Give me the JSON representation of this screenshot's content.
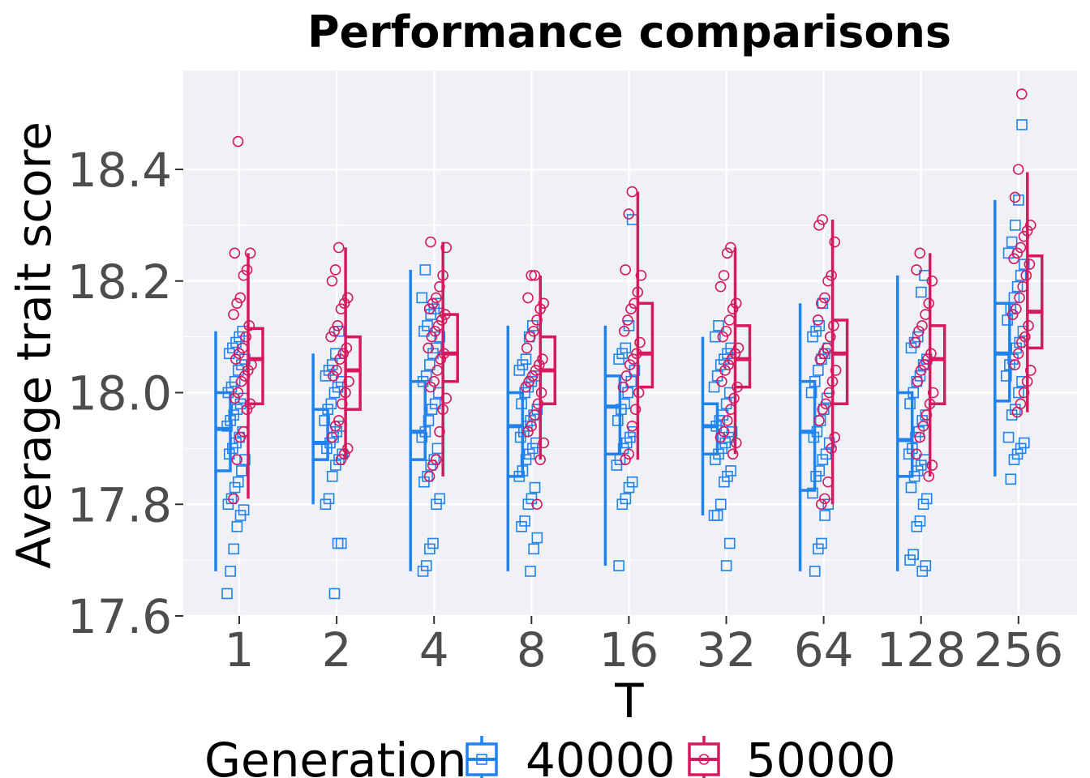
{
  "chart_data": {
    "type": "boxplot",
    "title": "Performance comparisons",
    "xlabel": "T",
    "ylabel": "Average trait score",
    "categories": [
      "1",
      "2",
      "4",
      "8",
      "16",
      "32",
      "64",
      "128",
      "256"
    ],
    "ylim": [
      17.6,
      18.57
    ],
    "yticks": [
      17.6,
      17.8,
      18.0,
      18.2,
      18.4
    ],
    "ytick_labels": [
      "17.6",
      "17.8",
      "18.0",
      "18.2",
      "18.4"
    ],
    "grid": true,
    "legend": {
      "title": "Generation",
      "position": "bottom",
      "entries": [
        "40000",
        "50000"
      ]
    },
    "series": [
      {
        "name": "40000",
        "color": "#1e82f0",
        "marker": "square",
        "boxes": [
          {
            "whislo": 17.68,
            "q1": 17.86,
            "med": 17.935,
            "q3": 18.0,
            "whishi": 18.11,
            "points": [
              17.64,
              17.68,
              17.72,
              17.76,
              17.78,
              17.79,
              17.8,
              17.81,
              17.83,
              17.84,
              17.86,
              17.88,
              17.89,
              17.9,
              17.91,
              17.92,
              17.93,
              17.94,
              17.95,
              17.96,
              17.97,
              17.98,
              17.99,
              18.0,
              18.01,
              18.02,
              18.04,
              18.05,
              18.06,
              18.07,
              18.08,
              18.09,
              18.1,
              18.11
            ]
          },
          {
            "whislo": 17.8,
            "q1": 17.88,
            "med": 17.91,
            "q3": 17.97,
            "whishi": 18.07,
            "points": [
              17.64,
              17.73,
              17.73,
              17.8,
              17.81,
              17.85,
              17.87,
              17.88,
              17.89,
              17.9,
              17.91,
              17.92,
              17.93,
              17.94,
              17.95,
              17.97,
              17.98,
              18.0,
              18.01,
              18.02,
              18.03,
              18.04,
              18.05,
              18.07,
              18.11
            ]
          },
          {
            "whislo": 17.68,
            "q1": 17.88,
            "med": 17.93,
            "q3": 18.02,
            "whishi": 18.22,
            "points": [
              17.68,
              17.69,
              17.72,
              17.73,
              17.8,
              17.81,
              17.84,
              17.85,
              17.87,
              17.88,
              17.9,
              17.92,
              17.93,
              17.95,
              17.97,
              17.98,
              18.0,
              18.02,
              18.03,
              18.05,
              18.07,
              18.08,
              18.1,
              18.11,
              18.12,
              18.14,
              18.15,
              18.16,
              18.17,
              18.22
            ]
          },
          {
            "whislo": 17.68,
            "q1": 17.85,
            "med": 17.94,
            "q3": 18.0,
            "whishi": 18.12,
            "points": [
              17.68,
              17.72,
              17.74,
              17.76,
              17.77,
              17.8,
              17.81,
              17.83,
              17.85,
              17.86,
              17.88,
              17.89,
              17.9,
              17.91,
              17.92,
              17.93,
              17.94,
              17.95,
              17.96,
              17.97,
              17.98,
              18.0,
              18.01,
              18.02,
              18.03,
              18.04,
              18.05,
              18.06,
              18.1,
              18.12
            ]
          },
          {
            "whislo": 17.69,
            "q1": 17.89,
            "med": 17.975,
            "q3": 18.03,
            "whishi": 18.12,
            "points": [
              17.69,
              17.8,
              17.81,
              17.83,
              17.84,
              17.87,
              17.88,
              17.9,
              17.91,
              17.92,
              17.93,
              17.95,
              17.97,
              17.98,
              18.0,
              18.02,
              18.04,
              18.06,
              18.07,
              18.08,
              18.12,
              18.31
            ]
          },
          {
            "whislo": 17.78,
            "q1": 17.89,
            "med": 17.94,
            "q3": 17.98,
            "whishi": 18.1,
            "points": [
              17.69,
              17.73,
              17.78,
              17.78,
              17.8,
              17.84,
              17.85,
              17.86,
              17.88,
              17.89,
              17.9,
              17.91,
              17.92,
              17.93,
              17.94,
              17.95,
              17.96,
              17.98,
              18.0,
              18.01,
              18.03,
              18.05,
              18.06,
              18.07,
              18.08,
              18.1,
              18.12
            ]
          },
          {
            "whislo": 17.68,
            "q1": 17.825,
            "med": 17.93,
            "q3": 18.02,
            "whishi": 18.16,
            "points": [
              17.68,
              17.72,
              17.73,
              17.78,
              17.8,
              17.82,
              17.85,
              17.86,
              17.88,
              17.89,
              17.91,
              17.92,
              17.93,
              17.95,
              17.97,
              17.99,
              18.0,
              18.02,
              18.04,
              18.06,
              18.07,
              18.08,
              18.1,
              18.11,
              18.12,
              18.16
            ]
          },
          {
            "whislo": 17.68,
            "q1": 17.85,
            "med": 17.915,
            "q3": 18.0,
            "whishi": 18.21,
            "points": [
              17.68,
              17.69,
              17.7,
              17.71,
              17.76,
              17.77,
              17.8,
              17.81,
              17.83,
              17.85,
              17.86,
              17.87,
              17.88,
              17.89,
              17.9,
              17.92,
              17.93,
              17.95,
              17.96,
              17.98,
              18.0,
              18.02,
              18.03,
              18.05,
              18.06,
              18.08,
              18.09,
              18.1,
              18.18,
              18.21
            ]
          },
          {
            "whislo": 17.85,
            "q1": 17.985,
            "med": 18.07,
            "q3": 18.16,
            "whishi": 18.345,
            "points": [
              17.845,
              17.88,
              17.89,
              17.9,
              17.91,
              17.92,
              17.96,
              17.97,
              18.0,
              18.02,
              18.03,
              18.05,
              18.06,
              18.08,
              18.09,
              18.11,
              18.13,
              18.15,
              18.17,
              18.19,
              18.21,
              18.23,
              18.25,
              18.27,
              18.3,
              18.345,
              18.48
            ]
          }
        ]
      },
      {
        "name": "50000",
        "color": "#d6185e",
        "marker": "circle",
        "boxes": [
          {
            "whislo": 17.81,
            "q1": 17.98,
            "med": 18.06,
            "q3": 18.115,
            "whishi": 18.25,
            "points": [
              17.81,
              17.88,
              17.92,
              17.93,
              17.97,
              17.98,
              17.99,
              18.0,
              18.02,
              18.03,
              18.04,
              18.05,
              18.06,
              18.07,
              18.08,
              18.1,
              18.12,
              18.14,
              18.16,
              18.17,
              18.21,
              18.22,
              18.25,
              18.25,
              18.45
            ]
          },
          {
            "whislo": 17.88,
            "q1": 17.97,
            "med": 18.04,
            "q3": 18.1,
            "whishi": 18.26,
            "points": [
              17.88,
              17.89,
              17.9,
              17.92,
              17.94,
              17.95,
              17.98,
              18.0,
              18.02,
              18.03,
              18.04,
              18.06,
              18.07,
              18.08,
              18.1,
              18.11,
              18.12,
              18.15,
              18.16,
              18.17,
              18.2,
              18.22,
              18.26
            ]
          },
          {
            "whislo": 17.85,
            "q1": 18.02,
            "med": 18.07,
            "q3": 18.14,
            "whishi": 18.27,
            "points": [
              17.85,
              17.87,
              17.88,
              17.93,
              17.97,
              17.99,
              18.01,
              18.02,
              18.04,
              18.06,
              18.07,
              18.08,
              18.1,
              18.11,
              18.12,
              18.13,
              18.14,
              18.15,
              18.16,
              18.17,
              18.19,
              18.21,
              18.26,
              18.27
            ]
          },
          {
            "whislo": 17.88,
            "q1": 17.98,
            "med": 18.04,
            "q3": 18.1,
            "whishi": 18.21,
            "points": [
              17.8,
              17.88,
              17.91,
              17.93,
              17.94,
              17.96,
              17.98,
              18.0,
              18.01,
              18.02,
              18.03,
              18.04,
              18.05,
              18.06,
              18.08,
              18.1,
              18.11,
              18.13,
              18.15,
              18.16,
              18.17,
              18.21,
              18.21
            ]
          },
          {
            "whislo": 17.88,
            "q1": 18.01,
            "med": 18.07,
            "q3": 18.16,
            "whishi": 18.36,
            "points": [
              17.88,
              17.89,
              17.94,
              17.97,
              18.0,
              18.01,
              18.03,
              18.05,
              18.06,
              18.07,
              18.09,
              18.11,
              18.13,
              18.15,
              18.16,
              18.18,
              18.21,
              18.22,
              18.32,
              18.36
            ]
          },
          {
            "whislo": 17.89,
            "q1": 18.01,
            "med": 18.06,
            "q3": 18.12,
            "whishi": 18.26,
            "points": [
              17.89,
              17.91,
              17.92,
              17.93,
              17.95,
              17.97,
              17.99,
              18.01,
              18.02,
              18.04,
              18.05,
              18.06,
              18.07,
              18.08,
              18.1,
              18.11,
              18.13,
              18.15,
              18.16,
              18.19,
              18.21,
              18.25,
              18.26
            ]
          },
          {
            "whislo": 17.8,
            "q1": 17.98,
            "med": 18.07,
            "q3": 18.13,
            "whishi": 18.31,
            "points": [
              17.8,
              17.81,
              17.84,
              17.9,
              17.92,
              17.95,
              17.97,
              17.98,
              18.0,
              18.02,
              18.04,
              18.06,
              18.07,
              18.08,
              18.1,
              18.12,
              18.13,
              18.16,
              18.17,
              18.2,
              18.21,
              18.27,
              18.3,
              18.31
            ]
          },
          {
            "whislo": 17.85,
            "q1": 17.98,
            "med": 18.06,
            "q3": 18.12,
            "whishi": 18.25,
            "points": [
              17.85,
              17.87,
              17.89,
              17.92,
              17.94,
              17.96,
              17.98,
              18.0,
              18.02,
              18.04,
              18.05,
              18.06,
              18.07,
              18.09,
              18.11,
              18.12,
              18.14,
              18.16,
              18.2,
              18.22,
              18.25
            ]
          },
          {
            "whislo": 17.965,
            "q1": 18.08,
            "med": 18.145,
            "q3": 18.245,
            "whishi": 18.395,
            "points": [
              17.965,
              17.98,
              18.0,
              18.02,
              18.04,
              18.05,
              18.07,
              18.09,
              18.1,
              18.12,
              18.14,
              18.15,
              18.17,
              18.19,
              18.21,
              18.23,
              18.24,
              18.25,
              18.26,
              18.28,
              18.29,
              18.3,
              18.35,
              18.4,
              18.535
            ]
          }
        ]
      }
    ]
  }
}
